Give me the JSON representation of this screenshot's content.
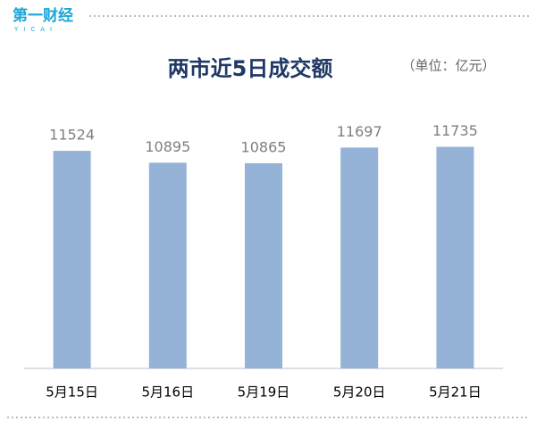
{
  "logo": "第一财经",
  "logo_sub": "YICAI",
  "chart_data": {
    "type": "bar",
    "title": "两市近5日成交额",
    "subtitle": "（单位：亿元）",
    "categories": [
      "5月15日",
      "5月16日",
      "5月19日",
      "5月20日",
      "5月21日"
    ],
    "values": [
      11524,
      10895,
      10865,
      11697,
      11735
    ],
    "color": "#95b3d7",
    "ylim": [
      0,
      12000
    ],
    "grid": false
  }
}
